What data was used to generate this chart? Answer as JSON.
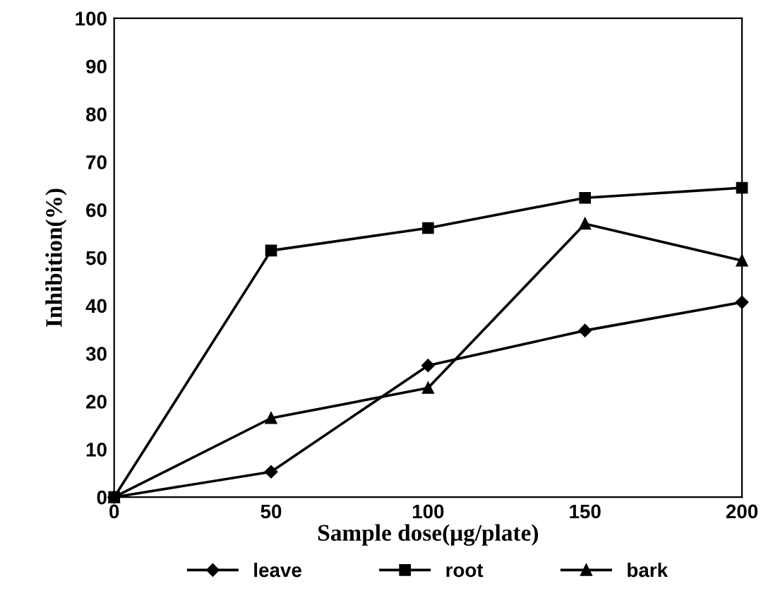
{
  "chart_data": {
    "type": "line",
    "xlabel": "Sample dose(μg/plate)",
    "ylabel": "Inhibition(%)",
    "x": [
      0,
      50,
      100,
      150,
      200
    ],
    "series": [
      {
        "name": "leave",
        "color": "#000000",
        "marker": "diamond",
        "values": [
          0,
          5.3,
          27.5,
          34.8,
          40.7
        ]
      },
      {
        "name": "root",
        "color": "#000000",
        "marker": "square",
        "values": [
          0,
          51.5,
          56.2,
          62.5,
          64.6
        ]
      },
      {
        "name": "bark",
        "color": "#000000",
        "marker": "triangle",
        "values": [
          0,
          16.5,
          22.8,
          57.1,
          49.4
        ]
      }
    ],
    "xlim": [
      0,
      200
    ],
    "xticks": [
      0,
      50,
      100,
      150,
      200
    ],
    "ylim": [
      0,
      100
    ],
    "yticks": [
      0,
      10,
      20,
      30,
      40,
      50,
      60,
      70,
      80,
      90,
      100
    ],
    "grid": false,
    "legend": "bottom",
    "line_style": "solid"
  }
}
